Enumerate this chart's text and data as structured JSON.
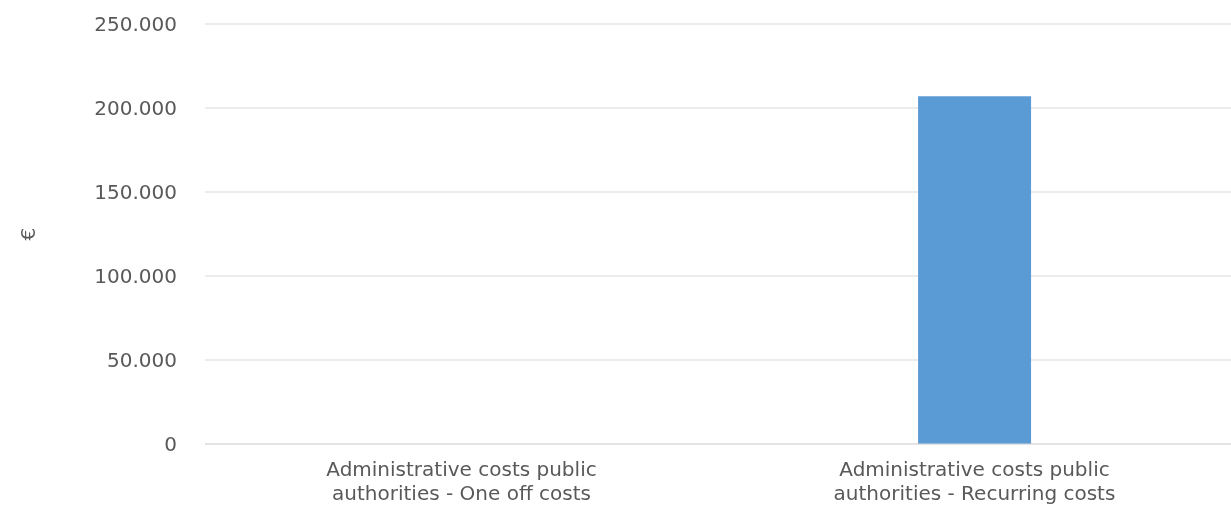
{
  "chart_data": {
    "type": "bar",
    "ylabel": "€",
    "categories": [
      "Administrative costs public authorities - One off costs",
      "Administrative costs public authorities - Recurring costs"
    ],
    "values": [
      0,
      207000
    ],
    "color": "#5b9bd5",
    "ylim": [
      0,
      250000
    ],
    "yticks": [
      0,
      {
        "value": 50000,
        "label": "50.000"
      },
      {
        "value": 100000,
        "label": "100.000"
      },
      {
        "value": 150000,
        "label": "150.000"
      },
      {
        "value": 200000,
        "label": "200.000"
      },
      {
        "value": 250000,
        "label": "250.000"
      }
    ],
    "grid": "y"
  }
}
